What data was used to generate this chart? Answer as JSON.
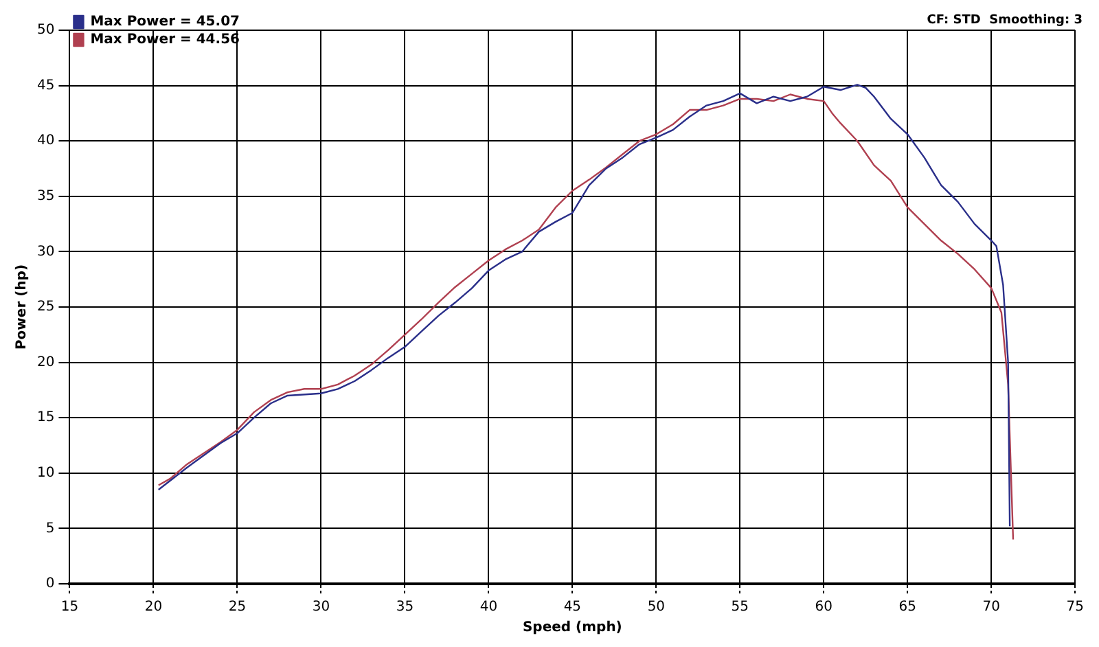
{
  "chart_data": {
    "type": "line",
    "xlabel": "Speed (mph)",
    "ylabel": "Power (hp)",
    "annotations": [
      "CF: STD  Smoothing: 3"
    ],
    "xlim": [
      15,
      75
    ],
    "xticks": [
      15,
      20,
      25,
      30,
      35,
      40,
      45,
      50,
      55,
      60,
      65,
      70,
      75
    ],
    "ylim": [
      0,
      50
    ],
    "yticks": [
      0,
      5,
      10,
      15,
      20,
      25,
      30,
      35,
      40,
      45,
      50
    ],
    "grid": true,
    "legend": "top left",
    "marker": "none",
    "line_style": "solid",
    "series": [
      {
        "name": "Max Power = 45.07",
        "color": "#2a2f8a",
        "x": [
          20.3,
          22,
          24,
          25,
          26,
          27,
          28,
          30,
          31,
          32,
          33,
          34,
          35,
          36,
          37,
          38,
          39,
          40,
          41,
          42,
          43,
          44,
          45,
          46,
          47,
          48,
          49,
          50,
          51,
          52,
          53,
          54,
          55,
          56,
          57,
          58,
          59,
          60,
          61,
          62,
          62.5,
          63,
          64,
          65,
          66,
          67,
          68,
          69,
          70,
          70.3,
          70.7,
          71,
          71.1
        ],
        "values": [
          8.5,
          10.5,
          12.7,
          13.6,
          15,
          16.3,
          17,
          17.2,
          17.6,
          18.3,
          19.3,
          20.4,
          21.4,
          22.8,
          24.2,
          25.4,
          26.7,
          28.3,
          29.3,
          30,
          31.8,
          32.7,
          33.5,
          36,
          37.5,
          38.5,
          39.7,
          40.3,
          41,
          42.2,
          43.2,
          43.6,
          44.3,
          43.4,
          44,
          43.6,
          44,
          44.9,
          44.6,
          45.07,
          44.8,
          44,
          42,
          40.6,
          38.5,
          36,
          34.5,
          32.5,
          31,
          30.5,
          27,
          20,
          5.2
        ]
      },
      {
        "name": "Max Power = 44.56",
        "color": "#b04050",
        "x": [
          20.3,
          21,
          22,
          24,
          25,
          26,
          27,
          28,
          29,
          30,
          31,
          32,
          33,
          34,
          35,
          36,
          37,
          38,
          39,
          40,
          41,
          42,
          43,
          44,
          45,
          46,
          47,
          48,
          49,
          50,
          51,
          52,
          53,
          54,
          55,
          56,
          57,
          58,
          59,
          60,
          60.5,
          61,
          62,
          63,
          64,
          65,
          66,
          67,
          68,
          69,
          70,
          70.6,
          71,
          71.3
        ],
        "values": [
          8.9,
          9.5,
          10.8,
          12.8,
          13.9,
          15.5,
          16.6,
          17.3,
          17.6,
          17.6,
          18,
          18.8,
          19.8,
          21.1,
          22.5,
          23.9,
          25.4,
          26.8,
          28,
          29.2,
          30.2,
          31,
          32,
          34,
          35.5,
          36.5,
          37.6,
          38.8,
          40,
          40.6,
          41.5,
          42.8,
          42.8,
          43.2,
          43.8,
          43.8,
          43.6,
          44.2,
          43.8,
          43.6,
          42.5,
          41.6,
          40,
          37.8,
          36.4,
          34,
          32.5,
          31,
          29.8,
          28.4,
          26.7,
          24.5,
          18,
          4
        ]
      }
    ]
  }
}
